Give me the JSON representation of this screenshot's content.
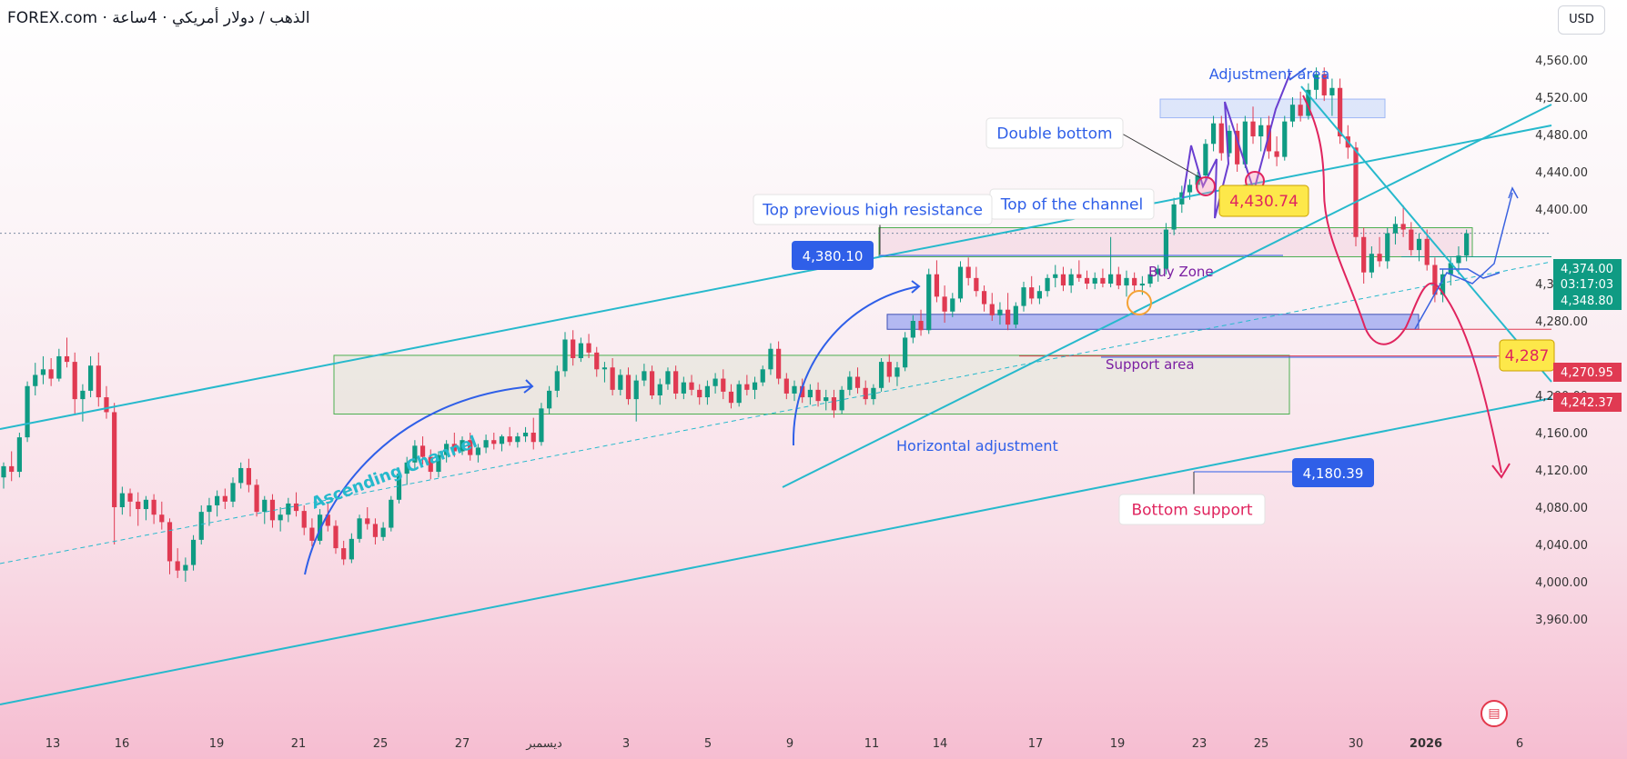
{
  "header": {
    "title": "FOREX.com · الذهب / دولار أمريكي · 4ساعة",
    "currency": "USD"
  },
  "chart_data": {
    "type": "candlestick",
    "x_tick_labels": [
      "13",
      "16",
      "19",
      "21",
      "25",
      "27",
      "ديسمبر",
      "3",
      "5",
      "9",
      "11",
      "14",
      "17",
      "19",
      "23",
      "25",
      "30",
      "2026",
      "6"
    ],
    "y_tick_labels": [
      "4,560.00",
      "4,520.00",
      "4,480.00",
      "4,440.00",
      "4,400.00",
      "4,320.00",
      "4,280.00",
      "4,200.00",
      "4,160.00",
      "4,120.00",
      "4,080.00",
      "4,040.00",
      "4,000.00",
      "3,960.00"
    ],
    "ylim": [
      3945,
      4585
    ],
    "price_badges": [
      {
        "label": "4,374.00",
        "sub": "03:17:03",
        "price": 4374,
        "bg": "#0f9b83"
      },
      {
        "label": "4,348.80",
        "price": 4348.8,
        "bg": "#0f9b83"
      },
      {
        "label": "4,270.95",
        "price": 4270.95,
        "bg": "#e03a52"
      },
      {
        "label": "4,242.37",
        "price": 4242.37,
        "bg": "#e03a52"
      }
    ],
    "annotations": {
      "adjustment_area": "Adjustment area",
      "double_bottom": "Double bottom",
      "top_channel": "Top of the channel",
      "top_prev_high": "Top previous high resistance",
      "buy_zone": "Buy Zone",
      "support_area": "Support area",
      "horizontal_adjustment": "Horizontal adjustment",
      "bottom_support": "Bottom support",
      "ascending_channel": "Ascending Channel",
      "level_4430": "4,430.74",
      "level_4380": "4,380.10",
      "level_4180": "4,180.39",
      "level_4287": "4,287"
    },
    "candles": [
      [
        4112,
        4128,
        4100,
        4124
      ],
      [
        4124,
        4140,
        4108,
        4118
      ],
      [
        4118,
        4160,
        4112,
        4155
      ],
      [
        4155,
        4215,
        4150,
        4210
      ],
      [
        4210,
        4235,
        4200,
        4222
      ],
      [
        4222,
        4242,
        4212,
        4228
      ],
      [
        4228,
        4240,
        4210,
        4218
      ],
      [
        4218,
        4250,
        4215,
        4242
      ],
      [
        4242,
        4262,
        4230,
        4236
      ],
      [
        4236,
        4246,
        4180,
        4196
      ],
      [
        4196,
        4212,
        4172,
        4205
      ],
      [
        4205,
        4242,
        4198,
        4232
      ],
      [
        4232,
        4246,
        4188,
        4198
      ],
      [
        4198,
        4210,
        4175,
        4182
      ],
      [
        4182,
        4192,
        4040,
        4080
      ],
      [
        4080,
        4102,
        4072,
        4095
      ],
      [
        4095,
        4100,
        4070,
        4086
      ],
      [
        4086,
        4096,
        4060,
        4078
      ],
      [
        4078,
        4092,
        4066,
        4088
      ],
      [
        4088,
        4094,
        4062,
        4072
      ],
      [
        4072,
        4086,
        4056,
        4064
      ],
      [
        4064,
        4068,
        4008,
        4022
      ],
      [
        4022,
        4036,
        4004,
        4012
      ],
      [
        4012,
        4026,
        4000,
        4018
      ],
      [
        4018,
        4050,
        4012,
        4045
      ],
      [
        4045,
        4082,
        4040,
        4075
      ],
      [
        4075,
        4090,
        4060,
        4082
      ],
      [
        4082,
        4098,
        4070,
        4092
      ],
      [
        4092,
        4100,
        4078,
        4086
      ],
      [
        4086,
        4112,
        4080,
        4106
      ],
      [
        4106,
        4128,
        4100,
        4122
      ],
      [
        4122,
        4132,
        4096,
        4104
      ],
      [
        4104,
        4110,
        4070,
        4075
      ],
      [
        4075,
        4092,
        4062,
        4088
      ],
      [
        4088,
        4094,
        4058,
        4066
      ],
      [
        4066,
        4080,
        4054,
        4072
      ],
      [
        4072,
        4090,
        4064,
        4084
      ],
      [
        4084,
        4096,
        4070,
        4076
      ],
      [
        4076,
        4082,
        4050,
        4058
      ],
      [
        4058,
        4068,
        4038,
        4044
      ],
      [
        4044,
        4078,
        4040,
        4072
      ],
      [
        4072,
        4086,
        4054,
        4060
      ],
      [
        4060,
        4066,
        4030,
        4036
      ],
      [
        4036,
        4044,
        4018,
        4024
      ],
      [
        4024,
        4052,
        4020,
        4046
      ],
      [
        4046,
        4072,
        4042,
        4068
      ],
      [
        4068,
        4080,
        4056,
        4062
      ],
      [
        4062,
        4068,
        4040,
        4048
      ],
      [
        4048,
        4064,
        4044,
        4058
      ],
      [
        4058,
        4092,
        4054,
        4088
      ],
      [
        4088,
        4122,
        4084,
        4116
      ],
      [
        4116,
        4134,
        4104,
        4128
      ],
      [
        4128,
        4152,
        4120,
        4146
      ],
      [
        4146,
        4156,
        4126,
        4134
      ],
      [
        4134,
        4142,
        4110,
        4118
      ],
      [
        4118,
        4140,
        4112,
        4136
      ],
      [
        4136,
        4152,
        4128,
        4148
      ],
      [
        4148,
        4160,
        4134,
        4140
      ],
      [
        4140,
        4156,
        4136,
        4152
      ],
      [
        4152,
        4160,
        4130,
        4136
      ],
      [
        4136,
        4148,
        4128,
        4144
      ],
      [
        4144,
        4158,
        4138,
        4152
      ],
      [
        4152,
        4160,
        4142,
        4148
      ],
      [
        4148,
        4158,
        4140,
        4156
      ],
      [
        4156,
        4166,
        4146,
        4150
      ],
      [
        4150,
        4160,
        4144,
        4156
      ],
      [
        4156,
        4166,
        4150,
        4160
      ],
      [
        4160,
        4176,
        4142,
        4150
      ],
      [
        4150,
        4192,
        4146,
        4186
      ],
      [
        4186,
        4210,
        4180,
        4205
      ],
      [
        4205,
        4232,
        4198,
        4226
      ],
      [
        4226,
        4268,
        4220,
        4260
      ],
      [
        4260,
        4270,
        4232,
        4240
      ],
      [
        4240,
        4262,
        4236,
        4256
      ],
      [
        4256,
        4266,
        4240,
        4246
      ],
      [
        4246,
        4252,
        4220,
        4228
      ],
      [
        4228,
        4236,
        4214,
        4230
      ],
      [
        4230,
        4240,
        4200,
        4206
      ],
      [
        4206,
        4228,
        4200,
        4222
      ],
      [
        4222,
        4230,
        4190,
        4196
      ],
      [
        4196,
        4222,
        4172,
        4216
      ],
      [
        4216,
        4234,
        4210,
        4226
      ],
      [
        4226,
        4232,
        4196,
        4200
      ],
      [
        4200,
        4218,
        4190,
        4212
      ],
      [
        4212,
        4230,
        4206,
        4226
      ],
      [
        4226,
        4232,
        4196,
        4202
      ],
      [
        4202,
        4220,
        4196,
        4214
      ],
      [
        4214,
        4222,
        4200,
        4206
      ],
      [
        4206,
        4212,
        4190,
        4198
      ],
      [
        4198,
        4216,
        4190,
        4210
      ],
      [
        4210,
        4224,
        4202,
        4218
      ],
      [
        4218,
        4228,
        4196,
        4204
      ],
      [
        4204,
        4212,
        4186,
        4192
      ],
      [
        4192,
        4216,
        4188,
        4212
      ],
      [
        4212,
        4222,
        4200,
        4206
      ],
      [
        4206,
        4220,
        4196,
        4214
      ],
      [
        4214,
        4232,
        4210,
        4228
      ],
      [
        4228,
        4256,
        4222,
        4250
      ],
      [
        4250,
        4258,
        4212,
        4218
      ],
      [
        4218,
        4224,
        4196,
        4202
      ],
      [
        4202,
        4216,
        4194,
        4210
      ],
      [
        4210,
        4218,
        4192,
        4198
      ],
      [
        4198,
        4212,
        4190,
        4206
      ],
      [
        4206,
        4214,
        4188,
        4194
      ],
      [
        4194,
        4206,
        4184,
        4198
      ],
      [
        4198,
        4206,
        4176,
        4184
      ],
      [
        4184,
        4210,
        4180,
        4206
      ],
      [
        4206,
        4226,
        4200,
        4220
      ],
      [
        4220,
        4230,
        4202,
        4208
      ],
      [
        4208,
        4216,
        4190,
        4196
      ],
      [
        4196,
        4212,
        4190,
        4208
      ],
      [
        4208,
        4240,
        4204,
        4236
      ],
      [
        4236,
        4244,
        4214,
        4220
      ],
      [
        4220,
        4236,
        4210,
        4230
      ],
      [
        4230,
        4268,
        4226,
        4262
      ],
      [
        4262,
        4286,
        4256,
        4280
      ],
      [
        4280,
        4292,
        4264,
        4270
      ],
      [
        4270,
        4336,
        4266,
        4330
      ],
      [
        4330,
        4345,
        4300,
        4306
      ],
      [
        4306,
        4318,
        4278,
        4290
      ],
      [
        4290,
        4310,
        4284,
        4304
      ],
      [
        4304,
        4344,
        4300,
        4338
      ],
      [
        4338,
        4348,
        4318,
        4326
      ],
      [
        4326,
        4338,
        4306,
        4312
      ],
      [
        4312,
        4318,
        4290,
        4298
      ],
      [
        4298,
        4310,
        4280,
        4286
      ],
      [
        4286,
        4300,
        4276,
        4292
      ],
      [
        4292,
        4310,
        4270,
        4276
      ],
      [
        4276,
        4300,
        4272,
        4296
      ],
      [
        4296,
        4322,
        4290,
        4316
      ],
      [
        4316,
        4328,
        4298,
        4304
      ],
      [
        4304,
        4318,
        4298,
        4312
      ],
      [
        4312,
        4330,
        4306,
        4326
      ],
      [
        4326,
        4340,
        4316,
        4330
      ],
      [
        4330,
        4338,
        4312,
        4318
      ],
      [
        4318,
        4336,
        4310,
        4330
      ],
      [
        4330,
        4345,
        4322,
        4326
      ],
      [
        4326,
        4334,
        4314,
        4320
      ],
      [
        4320,
        4332,
        4314,
        4326
      ],
      [
        4326,
        4336,
        4316,
        4320
      ],
      [
        4320,
        4370,
        4316,
        4330
      ],
      [
        4330,
        4338,
        4314,
        4318
      ],
      [
        4318,
        4334,
        4306,
        4326
      ],
      [
        4326,
        4332,
        4312,
        4318
      ],
      [
        4318,
        4328,
        4308,
        4320
      ],
      [
        4320,
        4338,
        4316,
        4330
      ],
      [
        4330,
        4340,
        4322,
        4336
      ],
      [
        4336,
        4385,
        4330,
        4378
      ],
      [
        4378,
        4412,
        4372,
        4405
      ],
      [
        4405,
        4425,
        4396,
        4418
      ],
      [
        4418,
        4432,
        4410,
        4426
      ],
      [
        4426,
        4440,
        4418,
        4436
      ],
      [
        4436,
        4475,
        4430,
        4470
      ],
      [
        4470,
        4500,
        4462,
        4492
      ],
      [
        4492,
        4500,
        4452,
        4460
      ],
      [
        4460,
        4490,
        4456,
        4484
      ],
      [
        4484,
        4492,
        4440,
        4448
      ],
      [
        4448,
        4500,
        4444,
        4494
      ],
      [
        4494,
        4510,
        4470,
        4478
      ],
      [
        4478,
        4498,
        4462,
        4490
      ],
      [
        4490,
        4500,
        4454,
        4462
      ],
      [
        4462,
        4478,
        4446,
        4456
      ],
      [
        4456,
        4500,
        4452,
        4494
      ],
      [
        4494,
        4520,
        4488,
        4512
      ],
      [
        4512,
        4526,
        4494,
        4500
      ],
      [
        4500,
        4535,
        4496,
        4528
      ],
      [
        4528,
        4552,
        4518,
        4545
      ],
      [
        4545,
        4552,
        4516,
        4522
      ],
      [
        4522,
        4540,
        4500,
        4530
      ],
      [
        4530,
        4540,
        4470,
        4478
      ],
      [
        4478,
        4490,
        4454,
        4466
      ],
      [
        4466,
        4472,
        4360,
        4370
      ],
      [
        4370,
        4380,
        4320,
        4332
      ],
      [
        4332,
        4360,
        4326,
        4352
      ],
      [
        4352,
        4370,
        4338,
        4344
      ],
      [
        4344,
        4380,
        4336,
        4374
      ],
      [
        4374,
        4392,
        4362,
        4384
      ],
      [
        4384,
        4404,
        4370,
        4378
      ],
      [
        4378,
        4386,
        4350,
        4356
      ],
      [
        4356,
        4374,
        4344,
        4368
      ],
      [
        4368,
        4378,
        4334,
        4340
      ],
      [
        4340,
        4348,
        4300,
        4308
      ],
      [
        4308,
        4336,
        4300,
        4330
      ],
      [
        4330,
        4348,
        4318,
        4342
      ],
      [
        4342,
        4360,
        4330,
        4350
      ],
      [
        4350,
        4378,
        4344,
        4374
      ]
    ]
  }
}
